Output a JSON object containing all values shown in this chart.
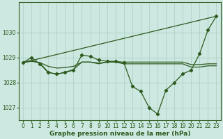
{
  "title": "Graphe pression niveau de la mer (hPa)",
  "background_color": "#cce8e0",
  "grid_color": "#aaccc4",
  "line_color": "#2d5a1e",
  "xlim": [
    -0.5,
    23.5
  ],
  "ylim": [
    1026.5,
    1031.2
  ],
  "yticks": [
    1027,
    1028,
    1029,
    1030
  ],
  "xticks": [
    0,
    1,
    2,
    3,
    4,
    5,
    6,
    7,
    8,
    9,
    10,
    11,
    12,
    13,
    14,
    15,
    16,
    17,
    18,
    19,
    20,
    21,
    22,
    23
  ],
  "series_main": {
    "x": [
      0,
      1,
      2,
      3,
      4,
      5,
      6,
      7,
      8,
      9,
      10,
      11,
      12,
      13,
      14,
      15,
      16,
      17,
      18,
      19,
      20,
      21,
      22,
      23
    ],
    "y": [
      1028.8,
      1029.0,
      1028.75,
      1028.4,
      1028.35,
      1028.4,
      1028.5,
      1029.1,
      1029.05,
      1028.9,
      1028.85,
      1028.85,
      1028.8,
      1027.85,
      1027.65,
      1027.0,
      1026.75,
      1027.7,
      1028.0,
      1028.35,
      1028.5,
      1029.15,
      1030.1,
      1030.65
    ]
  },
  "series_trend": {
    "x": [
      0,
      23
    ],
    "y": [
      1028.8,
      1030.65
    ]
  },
  "series_flat1": {
    "x": [
      0,
      1,
      2,
      3,
      4,
      5,
      6,
      7,
      8,
      9,
      10,
      11,
      12,
      13,
      14,
      15,
      16,
      17,
      18,
      19,
      20,
      21,
      22,
      23
    ],
    "y": [
      1028.8,
      1028.85,
      1028.8,
      1028.65,
      1028.58,
      1028.6,
      1028.65,
      1028.82,
      1028.82,
      1028.78,
      1028.82,
      1028.82,
      1028.82,
      1028.82,
      1028.82,
      1028.82,
      1028.82,
      1028.82,
      1028.82,
      1028.82,
      1028.72,
      1028.72,
      1028.75,
      1028.75
    ]
  },
  "series_flat2": {
    "x": [
      0,
      1,
      2,
      3,
      4,
      5,
      6,
      7,
      8,
      9,
      10,
      11,
      12,
      13,
      14,
      15,
      16,
      17,
      18,
      19,
      20,
      21,
      22,
      23
    ],
    "y": [
      1028.8,
      1028.88,
      1028.78,
      1028.42,
      1028.33,
      1028.42,
      1028.52,
      1028.82,
      1028.82,
      1028.75,
      1028.82,
      1028.82,
      1028.75,
      1028.75,
      1028.75,
      1028.75,
      1028.75,
      1028.75,
      1028.75,
      1028.75,
      1028.62,
      1028.62,
      1028.67,
      1028.67
    ]
  },
  "marker": "D",
  "marker_size": 2.2,
  "line_width": 0.9,
  "tick_fontsize": 5.5,
  "label_fontsize": 6.5
}
